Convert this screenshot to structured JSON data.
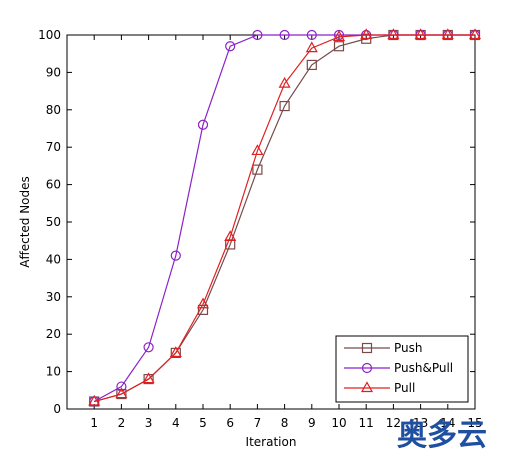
{
  "chart_data": {
    "type": "line",
    "title": "",
    "xlabel": "Iteration",
    "ylabel": "Affected Nodes",
    "x": [
      1,
      2,
      3,
      4,
      5,
      6,
      7,
      8,
      9,
      10,
      11,
      12,
      13,
      14,
      15
    ],
    "xlim": [
      0,
      15
    ],
    "ylim": [
      0,
      100
    ],
    "xticks": [
      1,
      2,
      3,
      4,
      5,
      6,
      7,
      8,
      9,
      10,
      11,
      12,
      13,
      14,
      15
    ],
    "yticks": [
      0,
      10,
      20,
      30,
      40,
      50,
      60,
      70,
      80,
      90,
      100
    ],
    "grid": false,
    "legend_position": "bottom-right",
    "series": [
      {
        "name": "Push",
        "marker": "square",
        "color": "#7a4a4a",
        "values": [
          2,
          4,
          8,
          15,
          26.5,
          44,
          64,
          81,
          92,
          97,
          99,
          100,
          100,
          100,
          100
        ]
      },
      {
        "name": "Push&Pull",
        "marker": "circle",
        "color": "#8b22c8",
        "values": [
          2,
          6,
          16.5,
          41,
          76,
          97,
          100,
          100,
          100,
          100,
          100,
          100,
          100,
          100,
          100
        ]
      },
      {
        "name": "Pull",
        "marker": "triangle",
        "color": "#e02020",
        "values": [
          2,
          4,
          8,
          15,
          28,
          46,
          69,
          87,
          96.5,
          99.5,
          100,
          100,
          100,
          100,
          100
        ]
      }
    ]
  },
  "watermark": {
    "text": "奥多云",
    "color": "#1f4fa0"
  }
}
